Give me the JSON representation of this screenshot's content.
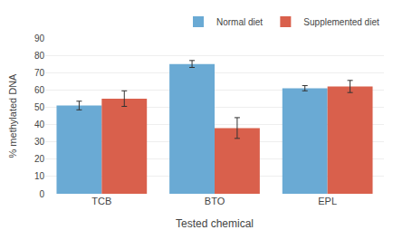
{
  "chart_data": {
    "type": "bar",
    "categories": [
      "TCB",
      "BTO",
      "EPL"
    ],
    "series": [
      {
        "name": "Normal diet",
        "color": "#6aaad4",
        "values": [
          51,
          75,
          61
        ],
        "errors": [
          2.5,
          2.0,
          1.5
        ]
      },
      {
        "name": "Supplemented diet",
        "color": "#d9604c",
        "values": [
          55,
          38,
          62
        ],
        "errors": [
          4.5,
          6.0,
          3.5
        ]
      }
    ],
    "xlabel": "Tested chemical",
    "ylabel": "% methylated DNA",
    "ylim": [
      0,
      90
    ],
    "yticks": [
      0,
      10,
      20,
      30,
      40,
      50,
      60,
      70,
      80,
      90
    ],
    "grid": true,
    "legend": "top"
  }
}
